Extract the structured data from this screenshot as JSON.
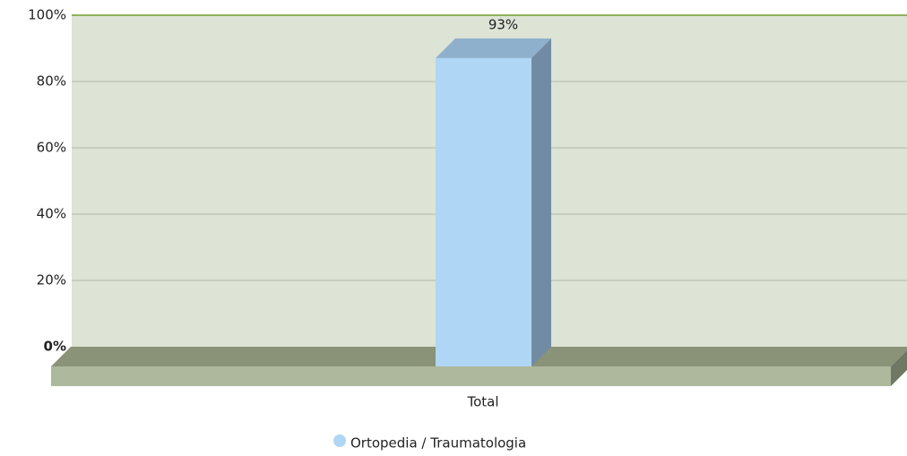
{
  "chart_data": {
    "type": "bar",
    "categories": [
      "Total"
    ],
    "series": [
      {
        "name": "Ortopedia / Traumatologia",
        "color": "#b0d6f5",
        "values": [
          93
        ],
        "value_labels": [
          "93%"
        ]
      }
    ],
    "ylim": [
      0,
      100
    ],
    "yticks": [
      {
        "value": 0,
        "label": "0%"
      },
      {
        "value": 20,
        "label": "20%"
      },
      {
        "value": 40,
        "label": "40%"
      },
      {
        "value": 60,
        "label": "60%"
      },
      {
        "value": 80,
        "label": "80%"
      },
      {
        "value": 100,
        "label": "100%"
      }
    ],
    "grid": true,
    "legend": "bottom"
  }
}
